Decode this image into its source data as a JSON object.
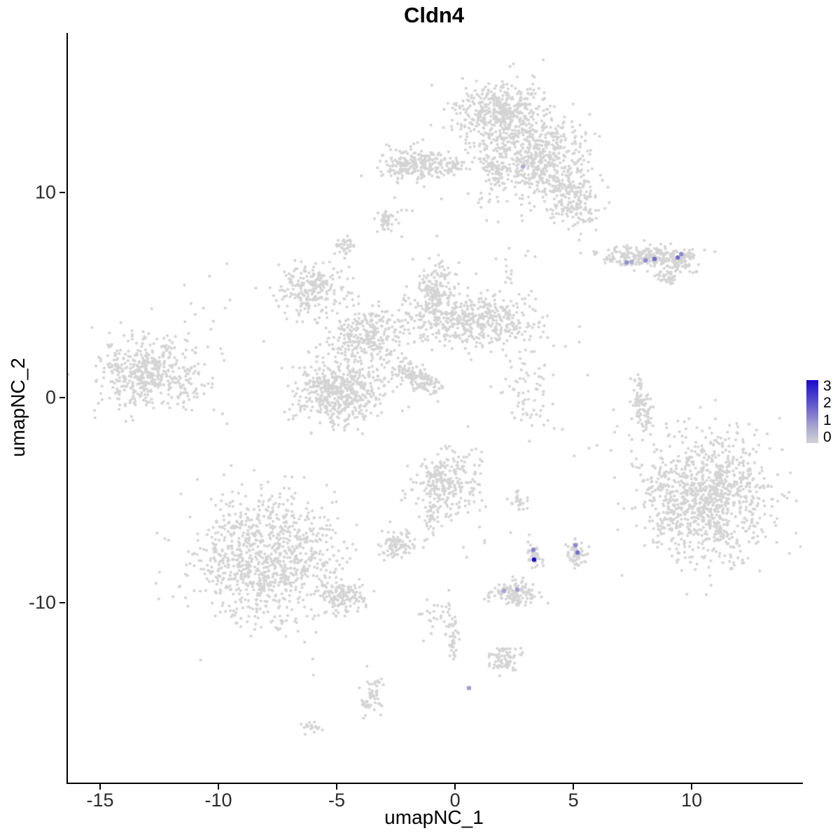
{
  "chart_data": {
    "type": "scatter",
    "title": "Cldn4",
    "xlabel": "umapNC_1",
    "ylabel": "umapNC_2",
    "xlim": [
      -16.42,
      14.64
    ],
    "ylim": [
      -18.77,
      17.78
    ],
    "x_ticks": [
      -15,
      -10,
      -5,
      0,
      5,
      10
    ],
    "y_ticks": [
      -10,
      0,
      10
    ],
    "grid": false,
    "legend_position": "right",
    "point_color_low": "#D3D3D3",
    "point_color_high": "#1A0BC8",
    "background_point_color": "#D4D4D4",
    "colorbar": {
      "min": 0,
      "max": 3,
      "ticks": [
        3,
        2,
        1,
        0
      ]
    },
    "clusters_format": "[center_x, center_y, spread_x, spread_y, n_points, rotation_deg]",
    "clusters": [
      [
        1.9,
        13.8,
        1.8,
        1.6,
        480,
        0
      ],
      [
        3.5,
        11.6,
        2.0,
        2.0,
        520,
        0
      ],
      [
        4.9,
        9.6,
        1.2,
        1.4,
        170,
        0
      ],
      [
        1.6,
        11.3,
        0.6,
        1.6,
        110,
        0
      ],
      [
        -1.8,
        11.4,
        1.4,
        0.8,
        200,
        0
      ],
      [
        -0.3,
        11.3,
        1.1,
        0.45,
        60,
        0
      ],
      [
        -3.0,
        8.6,
        0.4,
        0.55,
        40,
        0
      ],
      [
        -4.8,
        7.4,
        0.5,
        0.4,
        35,
        0
      ],
      [
        8.0,
        6.85,
        2.0,
        0.5,
        250,
        0
      ],
      [
        9.4,
        6.6,
        0.8,
        0.55,
        70,
        0
      ],
      [
        8.9,
        5.85,
        0.5,
        0.45,
        40,
        0
      ],
      [
        -6.2,
        5.3,
        1.5,
        1.3,
        230,
        0
      ],
      [
        -0.9,
        5.1,
        0.9,
        1.4,
        170,
        0
      ],
      [
        0.4,
        3.8,
        2.5,
        1.3,
        430,
        0
      ],
      [
        -3.9,
        3.0,
        1.5,
        1.4,
        280,
        0
      ],
      [
        -4.9,
        0.3,
        1.9,
        1.5,
        520,
        0
      ],
      [
        -1.7,
        1.0,
        1.3,
        0.5,
        150,
        -38
      ],
      [
        -13.0,
        1.1,
        2.2,
        1.6,
        420,
        0
      ],
      [
        -12.6,
        1.3,
        3.0,
        2.4,
        70,
        0
      ],
      [
        7.85,
        -0.3,
        0.4,
        1.4,
        90,
        8
      ],
      [
        2.9,
        0.2,
        0.9,
        2.1,
        65,
        0
      ],
      [
        -0.4,
        -4.2,
        1.5,
        1.6,
        250,
        0
      ],
      [
        10.7,
        -4.9,
        2.5,
        3.0,
        950,
        0
      ],
      [
        8.8,
        -4.6,
        0.9,
        2.3,
        90,
        0
      ],
      [
        -8.0,
        -7.9,
        3.1,
        3.0,
        950,
        0
      ],
      [
        -4.9,
        -9.7,
        1.1,
        0.8,
        130,
        0
      ],
      [
        -2.5,
        -7.2,
        0.75,
        0.65,
        90,
        0
      ],
      [
        3.3,
        -7.7,
        0.4,
        0.6,
        45,
        0
      ],
      [
        5.05,
        -7.6,
        0.45,
        0.6,
        55,
        0
      ],
      [
        2.4,
        -9.5,
        1.05,
        0.6,
        130,
        0
      ],
      [
        2.1,
        -12.7,
        0.75,
        0.55,
        70,
        0
      ],
      [
        -0.15,
        -11.7,
        0.25,
        1.3,
        45,
        0
      ],
      [
        -0.9,
        -10.6,
        0.7,
        0.9,
        25,
        0
      ],
      [
        -3.6,
        -14.6,
        0.45,
        0.9,
        55,
        0
      ],
      [
        -6.1,
        -16.1,
        0.4,
        0.25,
        18,
        0
      ],
      [
        -1.0,
        -5.9,
        0.5,
        0.9,
        30,
        0
      ],
      [
        2.6,
        -5.1,
        0.35,
        0.45,
        25,
        0
      ],
      [
        2.6,
        3.6,
        1.2,
        0.8,
        35,
        0
      ],
      [
        0.0,
        8.5,
        4.0,
        2.5,
        18,
        0
      ],
      [
        3.0,
        2.0,
        3.5,
        3.0,
        20,
        0
      ],
      [
        7.5,
        -2.0,
        2.5,
        2.0,
        18,
        0
      ],
      [
        -9.0,
        4.5,
        3.0,
        2.0,
        15,
        0
      ],
      [
        0.5,
        -6.5,
        2.5,
        2.0,
        15,
        0
      ],
      [
        2.5,
        6.0,
        2.0,
        1.5,
        12,
        0
      ]
    ],
    "expression_points_format": "[x, y, expression_value]",
    "expression_points": [
      [
        7.19,
        6.59,
        1.0
      ],
      [
        7.4,
        6.62,
        0.6
      ],
      [
        7.99,
        6.69,
        1.1
      ],
      [
        8.37,
        6.76,
        1.5
      ],
      [
        9.35,
        6.83,
        1.6
      ],
      [
        9.5,
        7.0,
        1.1
      ],
      [
        2.81,
        11.26,
        0.6
      ],
      [
        3.25,
        -7.42,
        1.2
      ],
      [
        3.28,
        -7.9,
        3.0
      ],
      [
        5.03,
        -7.2,
        1.1
      ],
      [
        5.12,
        -7.55,
        1.5
      ],
      [
        2.01,
        -9.42,
        0.7
      ],
      [
        2.57,
        -9.36,
        0.8
      ],
      [
        0.53,
        -14.16,
        0.8
      ]
    ]
  }
}
